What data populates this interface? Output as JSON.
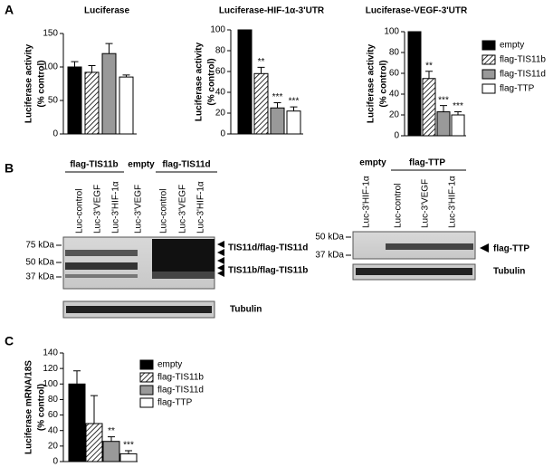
{
  "panel_labels": [
    "A",
    "B",
    "C"
  ],
  "chart_data": [
    {
      "type": "bar",
      "title": "Luciferase",
      "ylabel": [
        "Luciferase activity",
        "(% control)"
      ],
      "categories": [
        null,
        null,
        null,
        null
      ],
      "values": [
        100,
        92,
        120,
        85
      ],
      "errors": [
        8,
        10,
        15,
        3
      ],
      "fills": [
        "black",
        "hatched",
        "gray",
        "white"
      ],
      "ylim": [
        0,
        150
      ],
      "yticks": [
        0,
        50,
        100,
        150
      ]
    },
    {
      "type": "bar",
      "title": "Luciferase-HIF-1α-3'UTR",
      "ylabel": [
        "Luciferase activity",
        "(% control)"
      ],
      "categories": [
        null,
        null,
        null,
        null
      ],
      "values": [
        100,
        58,
        25,
        22
      ],
      "errors": [
        null,
        6,
        5,
        4
      ],
      "annotations": [
        null,
        "**",
        "***",
        "***"
      ],
      "fills": [
        "black",
        "hatched",
        "gray",
        "white"
      ],
      "ylim": [
        0,
        100
      ],
      "yticks": [
        0,
        20,
        40,
        60,
        80,
        100
      ]
    },
    {
      "type": "bar",
      "title": "Luciferase-VEGF-3'UTR",
      "ylabel": [
        "Luciferase activity",
        "(% control)"
      ],
      "categories": [
        null,
        null,
        null,
        null
      ],
      "values": [
        100,
        55,
        23,
        20
      ],
      "errors": [
        null,
        7,
        6,
        3
      ],
      "annotations": [
        null,
        "**",
        "***",
        "***"
      ],
      "fills": [
        "black",
        "hatched",
        "gray",
        "white"
      ],
      "ylim": [
        0,
        100
      ],
      "yticks": [
        0,
        20,
        40,
        60,
        80,
        100
      ]
    },
    {
      "type": "bar",
      "ylabel": [
        "Luciferase mRNA/18S",
        "(% control)"
      ],
      "categories": [
        null,
        null,
        null,
        null
      ],
      "values": [
        100,
        49,
        26,
        10
      ],
      "errors": [
        17,
        36,
        6,
        4
      ],
      "annotations": [
        null,
        null,
        "**",
        "***"
      ],
      "fills": [
        "black",
        "hatched",
        "gray",
        "white"
      ],
      "ylim": [
        0,
        140
      ],
      "yticks": [
        0,
        20,
        40,
        60,
        80,
        100,
        120,
        140
      ]
    }
  ],
  "legends": [
    {
      "entries": [
        {
          "name": "empty",
          "fill": "black"
        },
        {
          "name": "flag-TIS11b",
          "fill": "hatched"
        },
        {
          "name": "flag-TIS11d",
          "fill": "gray"
        },
        {
          "name": "flag-TTP",
          "fill": "white"
        }
      ]
    },
    {
      "entries": [
        {
          "name": "empty",
          "fill": "black"
        },
        {
          "name": "flag-TIS11b",
          "fill": "hatched"
        },
        {
          "name": "flag-TIS11d",
          "fill": "gray"
        },
        {
          "name": "flag-TTP",
          "fill": "white"
        }
      ]
    }
  ],
  "blots": [
    {
      "groups": [
        "flag-TIS11b",
        "empty",
        "flag-TIS11d"
      ],
      "lanes": [
        "Luc-control",
        "Luc-3'VEGF",
        "Luc-3'HIF-1α",
        "Luc-3'VEGF",
        "Luc-control",
        "Luc-3'VEGF",
        "Luc-3'HIF-1α"
      ],
      "markers": [
        "75 kDa",
        "50 kDa",
        "37 kDa"
      ],
      "bands": [
        "TIS11d/flag-TIS11d",
        "TIS11b/flag-TIS11b"
      ],
      "loading": "Tubulin"
    },
    {
      "groups": [
        "empty",
        "flag-TTP"
      ],
      "lanes": [
        "Luc-3'HIF-1α",
        "Luc-control",
        "Luc-3'VEGF",
        "Luc-3'HIF-1α"
      ],
      "markers": [
        "50 kDa",
        "37 kDa"
      ],
      "bands": [
        "flag-TTP"
      ],
      "loading": "Tubulin"
    }
  ]
}
